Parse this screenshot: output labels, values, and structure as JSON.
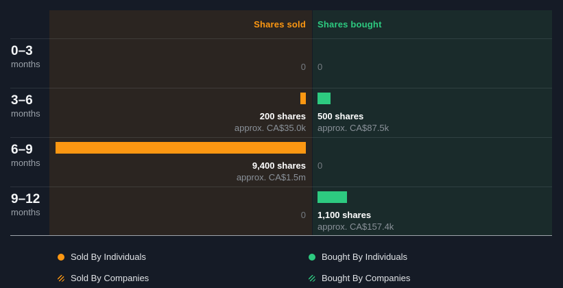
{
  "colors": {
    "page_bg": "#151B26",
    "sold_panel_bg": "#2B2521",
    "bought_panel_bg": "#1A2B2B",
    "sold_accent": "#FC9712",
    "bought_accent": "#2DCA80",
    "value_text": "#FFFFFF",
    "muted_text": "#8A9199",
    "bottom_axis_line": "#9FA5AC"
  },
  "periods": [
    {
      "range": "0–3",
      "unit": "months"
    },
    {
      "range": "3–6",
      "unit": "months"
    },
    {
      "range": "6–9",
      "unit": "months"
    },
    {
      "range": "9–12",
      "unit": "months"
    }
  ],
  "chart_data": {
    "type": "bar",
    "orientation": "horizontal-diverging",
    "title": "",
    "categories": [
      "0–3 months",
      "3–6 months",
      "6–9 months",
      "9–12 months"
    ],
    "unit": "shares",
    "max_shares": 9400,
    "grid": "horizontal-row-dividers",
    "legend_position": "bottom",
    "series": [
      {
        "name": "Shares sold",
        "color": "#FC9712",
        "side": "left",
        "values": [
          0,
          200,
          9400,
          0
        ],
        "value_labels": [
          "0",
          "200 shares",
          "9,400 shares",
          "0"
        ],
        "approx_labels": [
          "",
          "approx. CA$35.0k",
          "approx. CA$1.5m",
          ""
        ]
      },
      {
        "name": "Shares bought",
        "color": "#2DCA80",
        "side": "right",
        "values": [
          0,
          500,
          0,
          1100
        ],
        "value_labels": [
          "0",
          "500 shares",
          "0",
          "1,100 shares"
        ],
        "approx_labels": [
          "",
          "approx. CA$87.5k",
          "",
          "approx. CA$157.4k"
        ]
      }
    ]
  },
  "legend": {
    "left": [
      {
        "label": "Sold By Individuals",
        "swatch": "orange-solid-circle"
      },
      {
        "label": "Sold By Companies",
        "swatch": "orange-hatched-circle"
      }
    ],
    "right": [
      {
        "label": "Bought By Individuals",
        "swatch": "green-solid-circle"
      },
      {
        "label": "Bought By Companies",
        "swatch": "green-hatched-circle"
      }
    ]
  }
}
